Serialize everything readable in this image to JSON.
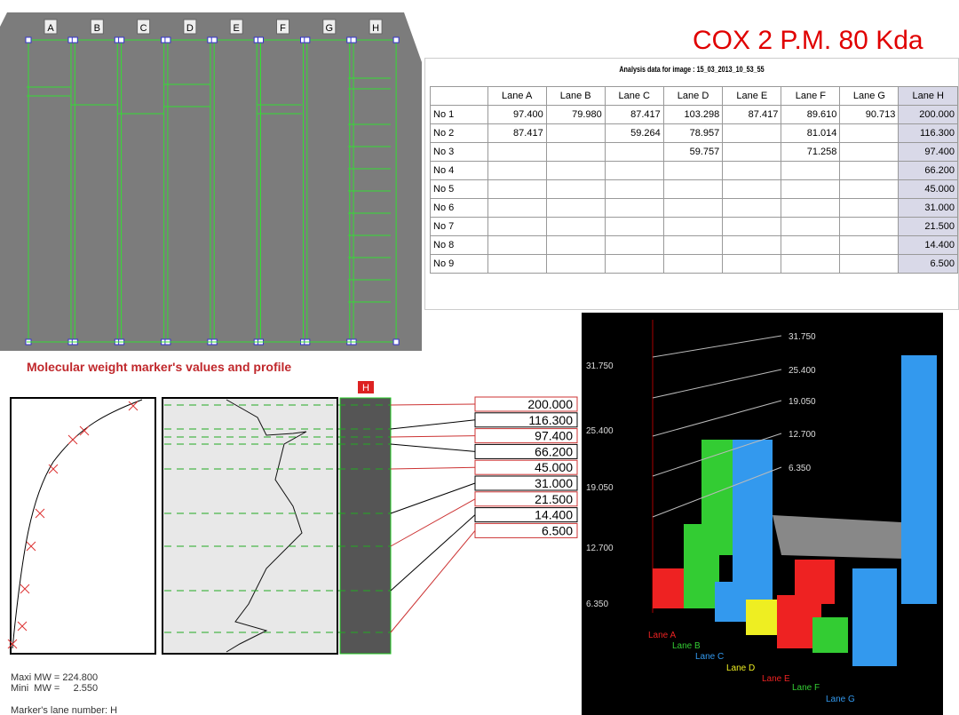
{
  "gel": {
    "lanes": [
      "A",
      "B",
      "C",
      "D",
      "E",
      "F",
      "G",
      "H"
    ]
  },
  "title": "COX 2  P.M. 80 Kda",
  "table": {
    "caption": "Analysis data for image : 15_03_2013_10_53_55",
    "header": [
      "Lane  A",
      "Lane  B",
      "Lane  C",
      "Lane  D",
      "Lane  E",
      "Lane  F",
      "Lane  G",
      "Lane  H"
    ],
    "rows": [
      [
        "No 1",
        "97.400",
        "79.980",
        "87.417",
        "103.298",
        "87.417",
        "89.610",
        "90.713",
        "200.000"
      ],
      [
        "No 2",
        "87.417",
        null,
        "59.264",
        "78.957",
        null,
        "81.014",
        null,
        "116.300"
      ],
      [
        "No 3",
        null,
        null,
        null,
        "59.757",
        null,
        "71.258",
        null,
        "97.400"
      ],
      [
        "No 4",
        null,
        null,
        null,
        null,
        null,
        null,
        null,
        "66.200"
      ],
      [
        "No 5",
        null,
        null,
        null,
        null,
        null,
        null,
        null,
        "45.000"
      ],
      [
        "No 6",
        null,
        null,
        null,
        null,
        null,
        null,
        null,
        "31.000"
      ],
      [
        "No 7",
        null,
        null,
        null,
        null,
        null,
        null,
        null,
        "21.500"
      ],
      [
        "No 8",
        null,
        null,
        null,
        null,
        null,
        null,
        null,
        "14.400"
      ],
      [
        "No 9",
        null,
        null,
        null,
        null,
        null,
        null,
        null,
        "6.500"
      ]
    ]
  },
  "profile": {
    "title": "Molecular weight marker's values and profile",
    "lane": "H",
    "markers": [
      "200.000",
      "116.300",
      "97.400",
      "66.200",
      "45.000",
      "31.000",
      "21.500",
      "14.400",
      "6.500"
    ],
    "max_mw": "Maxi MW = 224.800",
    "min_mw": "Mini  MW =     2.550",
    "marker_lane": "Marker's lane number: H"
  },
  "chart3d": {
    "axis_labels": [
      "31.750",
      "25.400",
      "19.050",
      "12.700",
      "6.350"
    ],
    "wall_labels": [
      "31.750",
      "25.400",
      "19.050",
      "12.700",
      "6.350"
    ],
    "lanes": [
      "Lane A",
      "Lane B",
      "Lane C",
      "Lane D",
      "Lane E",
      "Lane F",
      "Lane G"
    ]
  }
}
